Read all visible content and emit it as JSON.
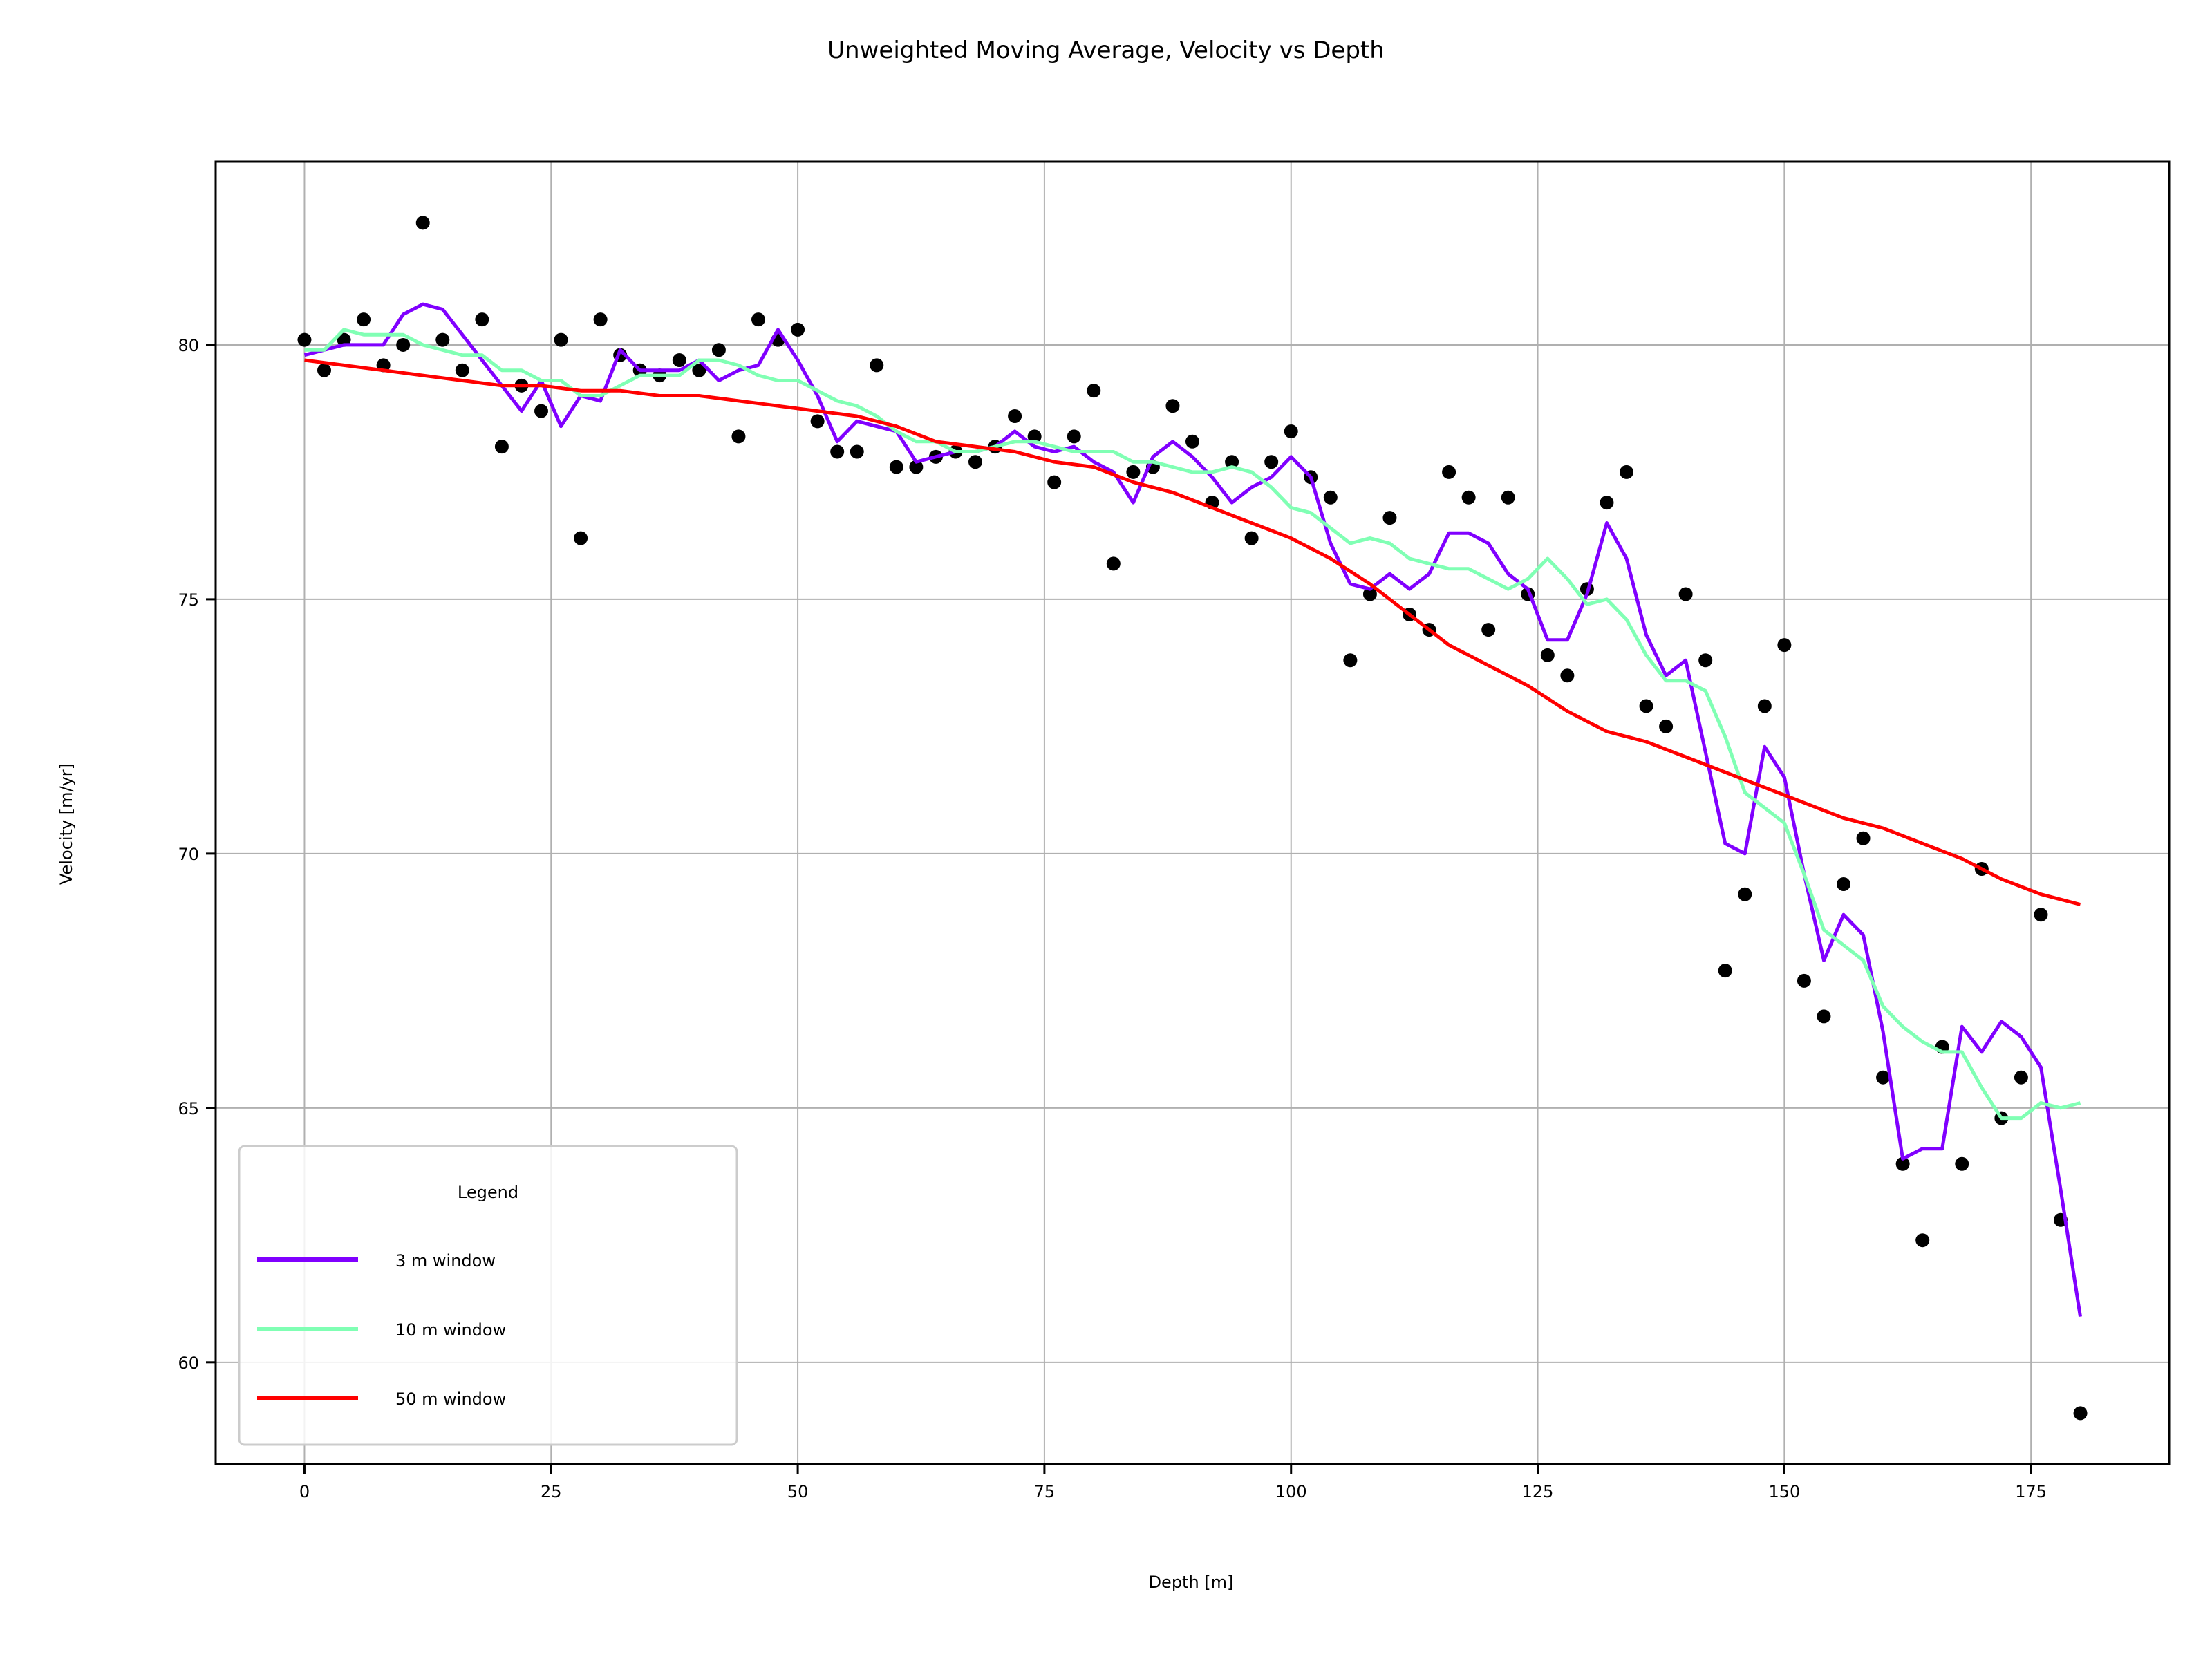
{
  "chart_data": {
    "type": "line",
    "title": "Unweighted Moving Average, Velocity vs Depth",
    "xlabel": "Depth [m]",
    "ylabel": "Velocity [m/yr]",
    "xlim": [
      -9,
      189
    ],
    "ylim": [
      58,
      83.6
    ],
    "xticks": [
      0,
      25,
      50,
      75,
      100,
      125,
      150,
      175
    ],
    "yticks": [
      60,
      65,
      70,
      75,
      80
    ],
    "xtick_labels": [
      "0",
      "25",
      "50",
      "75",
      "100",
      "125",
      "150",
      "175"
    ],
    "ytick_labels": [
      "60",
      "65",
      "70",
      "75",
      "80"
    ],
    "grid": true,
    "legend": {
      "title": "Legend",
      "placement": "lower-left"
    },
    "scatter": {
      "color": "#000000",
      "points": [
        [
          0,
          80.1
        ],
        [
          2,
          79.5
        ],
        [
          4,
          80.1
        ],
        [
          6,
          80.5
        ],
        [
          8,
          79.6
        ],
        [
          10,
          80.0
        ],
        [
          12,
          82.4
        ],
        [
          14,
          80.1
        ],
        [
          16,
          79.5
        ],
        [
          18,
          80.5
        ],
        [
          20,
          78.0
        ],
        [
          22,
          79.2
        ],
        [
          24,
          78.7
        ],
        [
          26,
          80.1
        ],
        [
          28,
          76.2
        ],
        [
          30,
          80.5
        ],
        [
          32,
          79.8
        ],
        [
          34,
          79.5
        ],
        [
          36,
          79.4
        ],
        [
          38,
          79.7
        ],
        [
          40,
          79.5
        ],
        [
          42,
          79.9
        ],
        [
          44,
          78.2
        ],
        [
          46,
          80.5
        ],
        [
          48,
          80.1
        ],
        [
          50,
          80.3
        ],
        [
          52,
          78.5
        ],
        [
          54,
          77.9
        ],
        [
          56,
          77.9
        ],
        [
          58,
          79.6
        ],
        [
          60,
          77.6
        ],
        [
          62,
          77.6
        ],
        [
          64,
          77.8
        ],
        [
          66,
          77.9
        ],
        [
          68,
          77.7
        ],
        [
          70,
          78.0
        ],
        [
          72,
          78.6
        ],
        [
          74,
          78.2
        ],
        [
          76,
          77.3
        ],
        [
          78,
          78.2
        ],
        [
          80,
          79.1
        ],
        [
          82,
          75.7
        ],
        [
          84,
          77.5
        ],
        [
          86,
          77.6
        ],
        [
          88,
          78.8
        ],
        [
          90,
          78.1
        ],
        [
          92,
          76.9
        ],
        [
          94,
          77.7
        ],
        [
          96,
          76.2
        ],
        [
          98,
          77.7
        ],
        [
          100,
          78.3
        ],
        [
          102,
          77.4
        ],
        [
          104,
          77.0
        ],
        [
          106,
          73.8
        ],
        [
          108,
          75.1
        ],
        [
          110,
          76.6
        ],
        [
          112,
          74.7
        ],
        [
          114,
          74.4
        ],
        [
          116,
          77.5
        ],
        [
          118,
          77.0
        ],
        [
          120,
          74.4
        ],
        [
          122,
          77.0
        ],
        [
          124,
          75.1
        ],
        [
          126,
          73.9
        ],
        [
          128,
          73.5
        ],
        [
          130,
          75.2
        ],
        [
          132,
          76.9
        ],
        [
          134,
          77.5
        ],
        [
          136,
          72.9
        ],
        [
          138,
          72.5
        ],
        [
          140,
          75.1
        ],
        [
          142,
          73.8
        ],
        [
          144,
          67.7
        ],
        [
          146,
          69.2
        ],
        [
          148,
          72.9
        ],
        [
          150,
          74.1
        ],
        [
          152,
          67.5
        ],
        [
          154,
          66.8
        ],
        [
          156,
          69.4
        ],
        [
          158,
          70.3
        ],
        [
          160,
          65.6
        ],
        [
          162,
          63.9
        ],
        [
          164,
          62.4
        ],
        [
          166,
          66.2
        ],
        [
          168,
          63.9
        ],
        [
          170,
          69.7
        ],
        [
          172,
          64.8
        ],
        [
          174,
          65.6
        ],
        [
          176,
          68.8
        ],
        [
          178,
          62.8
        ],
        [
          180,
          59.0
        ]
      ]
    },
    "series": [
      {
        "name": "3 m window",
        "color": "#8000ff",
        "x": [
          0,
          2,
          4,
          6,
          8,
          10,
          12,
          14,
          16,
          18,
          20,
          22,
          24,
          26,
          28,
          30,
          32,
          34,
          36,
          38,
          40,
          42,
          44,
          46,
          48,
          50,
          52,
          54,
          56,
          58,
          60,
          62,
          64,
          66,
          68,
          70,
          72,
          74,
          76,
          78,
          80,
          82,
          84,
          86,
          88,
          90,
          92,
          94,
          96,
          98,
          100,
          102,
          104,
          106,
          108,
          110,
          112,
          114,
          116,
          118,
          120,
          122,
          124,
          126,
          128,
          130,
          132,
          134,
          136,
          138,
          140,
          142,
          144,
          146,
          148,
          150,
          152,
          154,
          156,
          158,
          160,
          162,
          164,
          166,
          168,
          170,
          172,
          174,
          176,
          178,
          180
        ],
        "values": [
          79.8,
          79.9,
          80.0,
          80.0,
          80.0,
          80.6,
          80.8,
          80.7,
          80.2,
          79.7,
          79.2,
          78.7,
          79.3,
          78.4,
          79.0,
          78.9,
          79.9,
          79.5,
          79.5,
          79.5,
          79.7,
          79.3,
          79.5,
          79.6,
          80.3,
          79.7,
          79.0,
          78.1,
          78.5,
          78.4,
          78.3,
          77.7,
          77.8,
          77.9,
          77.9,
          78.0,
          78.3,
          78.0,
          77.9,
          78.0,
          77.7,
          77.5,
          76.9,
          77.8,
          78.1,
          77.8,
          77.4,
          76.9,
          77.2,
          77.4,
          77.8,
          77.4,
          76.1,
          75.3,
          75.2,
          75.5,
          75.2,
          75.5,
          76.3,
          76.3,
          76.1,
          75.5,
          75.2,
          74.2,
          74.2,
          75.1,
          76.5,
          75.8,
          74.3,
          73.5,
          73.8,
          72.0,
          70.2,
          70.0,
          72.1,
          71.5,
          69.6,
          67.9,
          68.8,
          68.4,
          66.5,
          64.0,
          64.2,
          64.2,
          66.6,
          66.1,
          66.7,
          66.4,
          65.8,
          63.4,
          60.9
        ]
      },
      {
        "name": "10 m window",
        "color": "#80ffb4",
        "x": [
          0,
          2,
          4,
          6,
          8,
          10,
          12,
          14,
          16,
          18,
          20,
          22,
          24,
          26,
          28,
          30,
          32,
          34,
          36,
          38,
          40,
          42,
          44,
          46,
          48,
          50,
          52,
          54,
          56,
          58,
          60,
          62,
          64,
          66,
          68,
          70,
          72,
          74,
          76,
          78,
          80,
          82,
          84,
          86,
          88,
          90,
          92,
          94,
          96,
          98,
          100,
          102,
          104,
          106,
          108,
          110,
          112,
          114,
          116,
          118,
          120,
          122,
          124,
          126,
          128,
          130,
          132,
          134,
          136,
          138,
          140,
          142,
          144,
          146,
          148,
          150,
          152,
          154,
          156,
          158,
          160,
          162,
          164,
          166,
          168,
          170,
          172,
          174,
          176,
          178,
          180
        ],
        "values": [
          79.9,
          79.9,
          80.3,
          80.2,
          80.2,
          80.2,
          80.0,
          79.9,
          79.8,
          79.8,
          79.5,
          79.5,
          79.3,
          79.3,
          79.0,
          79.0,
          79.2,
          79.4,
          79.4,
          79.4,
          79.7,
          79.7,
          79.6,
          79.4,
          79.3,
          79.3,
          79.1,
          78.9,
          78.8,
          78.6,
          78.3,
          78.1,
          78.1,
          77.9,
          77.9,
          78.0,
          78.1,
          78.1,
          78.0,
          77.9,
          77.9,
          77.9,
          77.7,
          77.7,
          77.6,
          77.5,
          77.5,
          77.6,
          77.5,
          77.2,
          76.8,
          76.7,
          76.4,
          76.1,
          76.2,
          76.1,
          75.8,
          75.7,
          75.6,
          75.6,
          75.4,
          75.2,
          75.4,
          75.8,
          75.4,
          74.9,
          75.0,
          74.6,
          73.9,
          73.4,
          73.4,
          73.2,
          72.3,
          71.2,
          70.9,
          70.6,
          69.6,
          68.5,
          68.2,
          67.9,
          67.0,
          66.6,
          66.3,
          66.1,
          66.1,
          65.4,
          64.8,
          64.8,
          65.1,
          65.0,
          65.1
        ]
      },
      {
        "name": "50 m window",
        "color": "#ff0000",
        "x": [
          0,
          4,
          8,
          12,
          16,
          20,
          24,
          28,
          32,
          36,
          40,
          44,
          48,
          52,
          56,
          60,
          64,
          68,
          72,
          76,
          80,
          84,
          88,
          92,
          96,
          100,
          104,
          108,
          112,
          116,
          120,
          124,
          128,
          132,
          136,
          140,
          144,
          148,
          152,
          156,
          160,
          164,
          168,
          172,
          176,
          180
        ],
        "values": [
          79.7,
          79.6,
          79.5,
          79.4,
          79.3,
          79.2,
          79.2,
          79.1,
          79.1,
          79.0,
          79.0,
          78.9,
          78.8,
          78.7,
          78.6,
          78.4,
          78.1,
          78.0,
          77.9,
          77.7,
          77.6,
          77.3,
          77.1,
          76.8,
          76.5,
          76.2,
          75.8,
          75.3,
          74.7,
          74.1,
          73.7,
          73.3,
          72.8,
          72.4,
          72.2,
          71.9,
          71.6,
          71.3,
          71.0,
          70.7,
          70.5,
          70.2,
          69.9,
          69.5,
          69.2,
          69.0
        ]
      }
    ]
  }
}
